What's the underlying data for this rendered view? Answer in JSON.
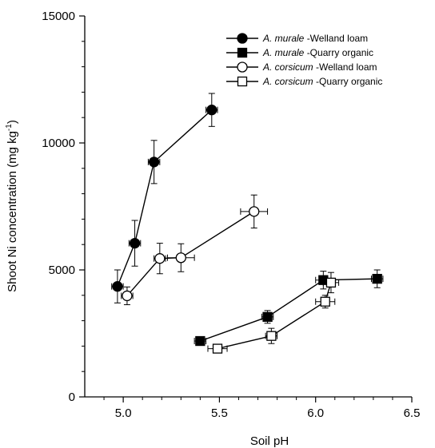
{
  "chart_data": {
    "type": "scatter",
    "xlabel": "Soil pH",
    "ylabel": "Shoot Ni concentration (mg kg-1)",
    "ylabel_parts": {
      "main": "Shoot Ni concentration (mg kg",
      "sup": "-1",
      "end": ")"
    },
    "xlim": [
      4.8,
      6.5
    ],
    "ylim": [
      0,
      15000
    ],
    "xticks": [
      5.0,
      5.5,
      6.0,
      6.5
    ],
    "xtick_labels": [
      "5.0",
      "5.5",
      "6.0",
      "6.5"
    ],
    "yticks": [
      0,
      5000,
      10000,
      15000
    ],
    "ytick_labels": [
      "0",
      "5000",
      "10000",
      "15000"
    ],
    "legend_position": "top-right",
    "series": [
      {
        "name": "A. murale -Welland loam",
        "species": "A. murale",
        "soil": "-Welland loam",
        "marker": "circle",
        "filled": true,
        "x": [
          4.97,
          5.06,
          5.16,
          5.46
        ],
        "y": [
          4350,
          6050,
          9250,
          11300
        ],
        "x_err": [
          0.03,
          0.03,
          0.03,
          0.03
        ],
        "y_err": [
          650,
          900,
          850,
          650
        ]
      },
      {
        "name": "A. murale -Quarry organic",
        "species": "A. murale",
        "soil": "-Quarry organic",
        "marker": "square",
        "filled": true,
        "x": [
          5.4,
          5.75,
          6.04,
          6.32
        ],
        "y": [
          2200,
          3150,
          4600,
          4650
        ],
        "x_err": [
          0.03,
          0.03,
          0.04,
          0.03
        ],
        "y_err": [
          150,
          250,
          350,
          350
        ]
      },
      {
        "name": "A. corsicum -Welland loam",
        "species": "A. corsicum",
        "soil": "-Welland loam",
        "marker": "circle",
        "filled": false,
        "x": [
          5.02,
          5.19,
          5.3,
          5.68
        ],
        "y": [
          3980,
          5450,
          5480,
          7300
        ],
        "x_err": [
          0.03,
          0.03,
          0.07,
          0.07
        ],
        "y_err": [
          350,
          600,
          550,
          650
        ]
      },
      {
        "name": "A. corsicum -Quarry organic",
        "species": "A. corsicum",
        "soil": "-Quarry organic",
        "marker": "square",
        "filled": false,
        "x": [
          5.49,
          5.77,
          6.05,
          6.08
        ],
        "y": [
          1900,
          2400,
          3750,
          4500
        ],
        "x_err": [
          0.05,
          0.03,
          0.05,
          0.04
        ],
        "y_err": [
          150,
          300,
          250,
          400
        ]
      }
    ]
  }
}
